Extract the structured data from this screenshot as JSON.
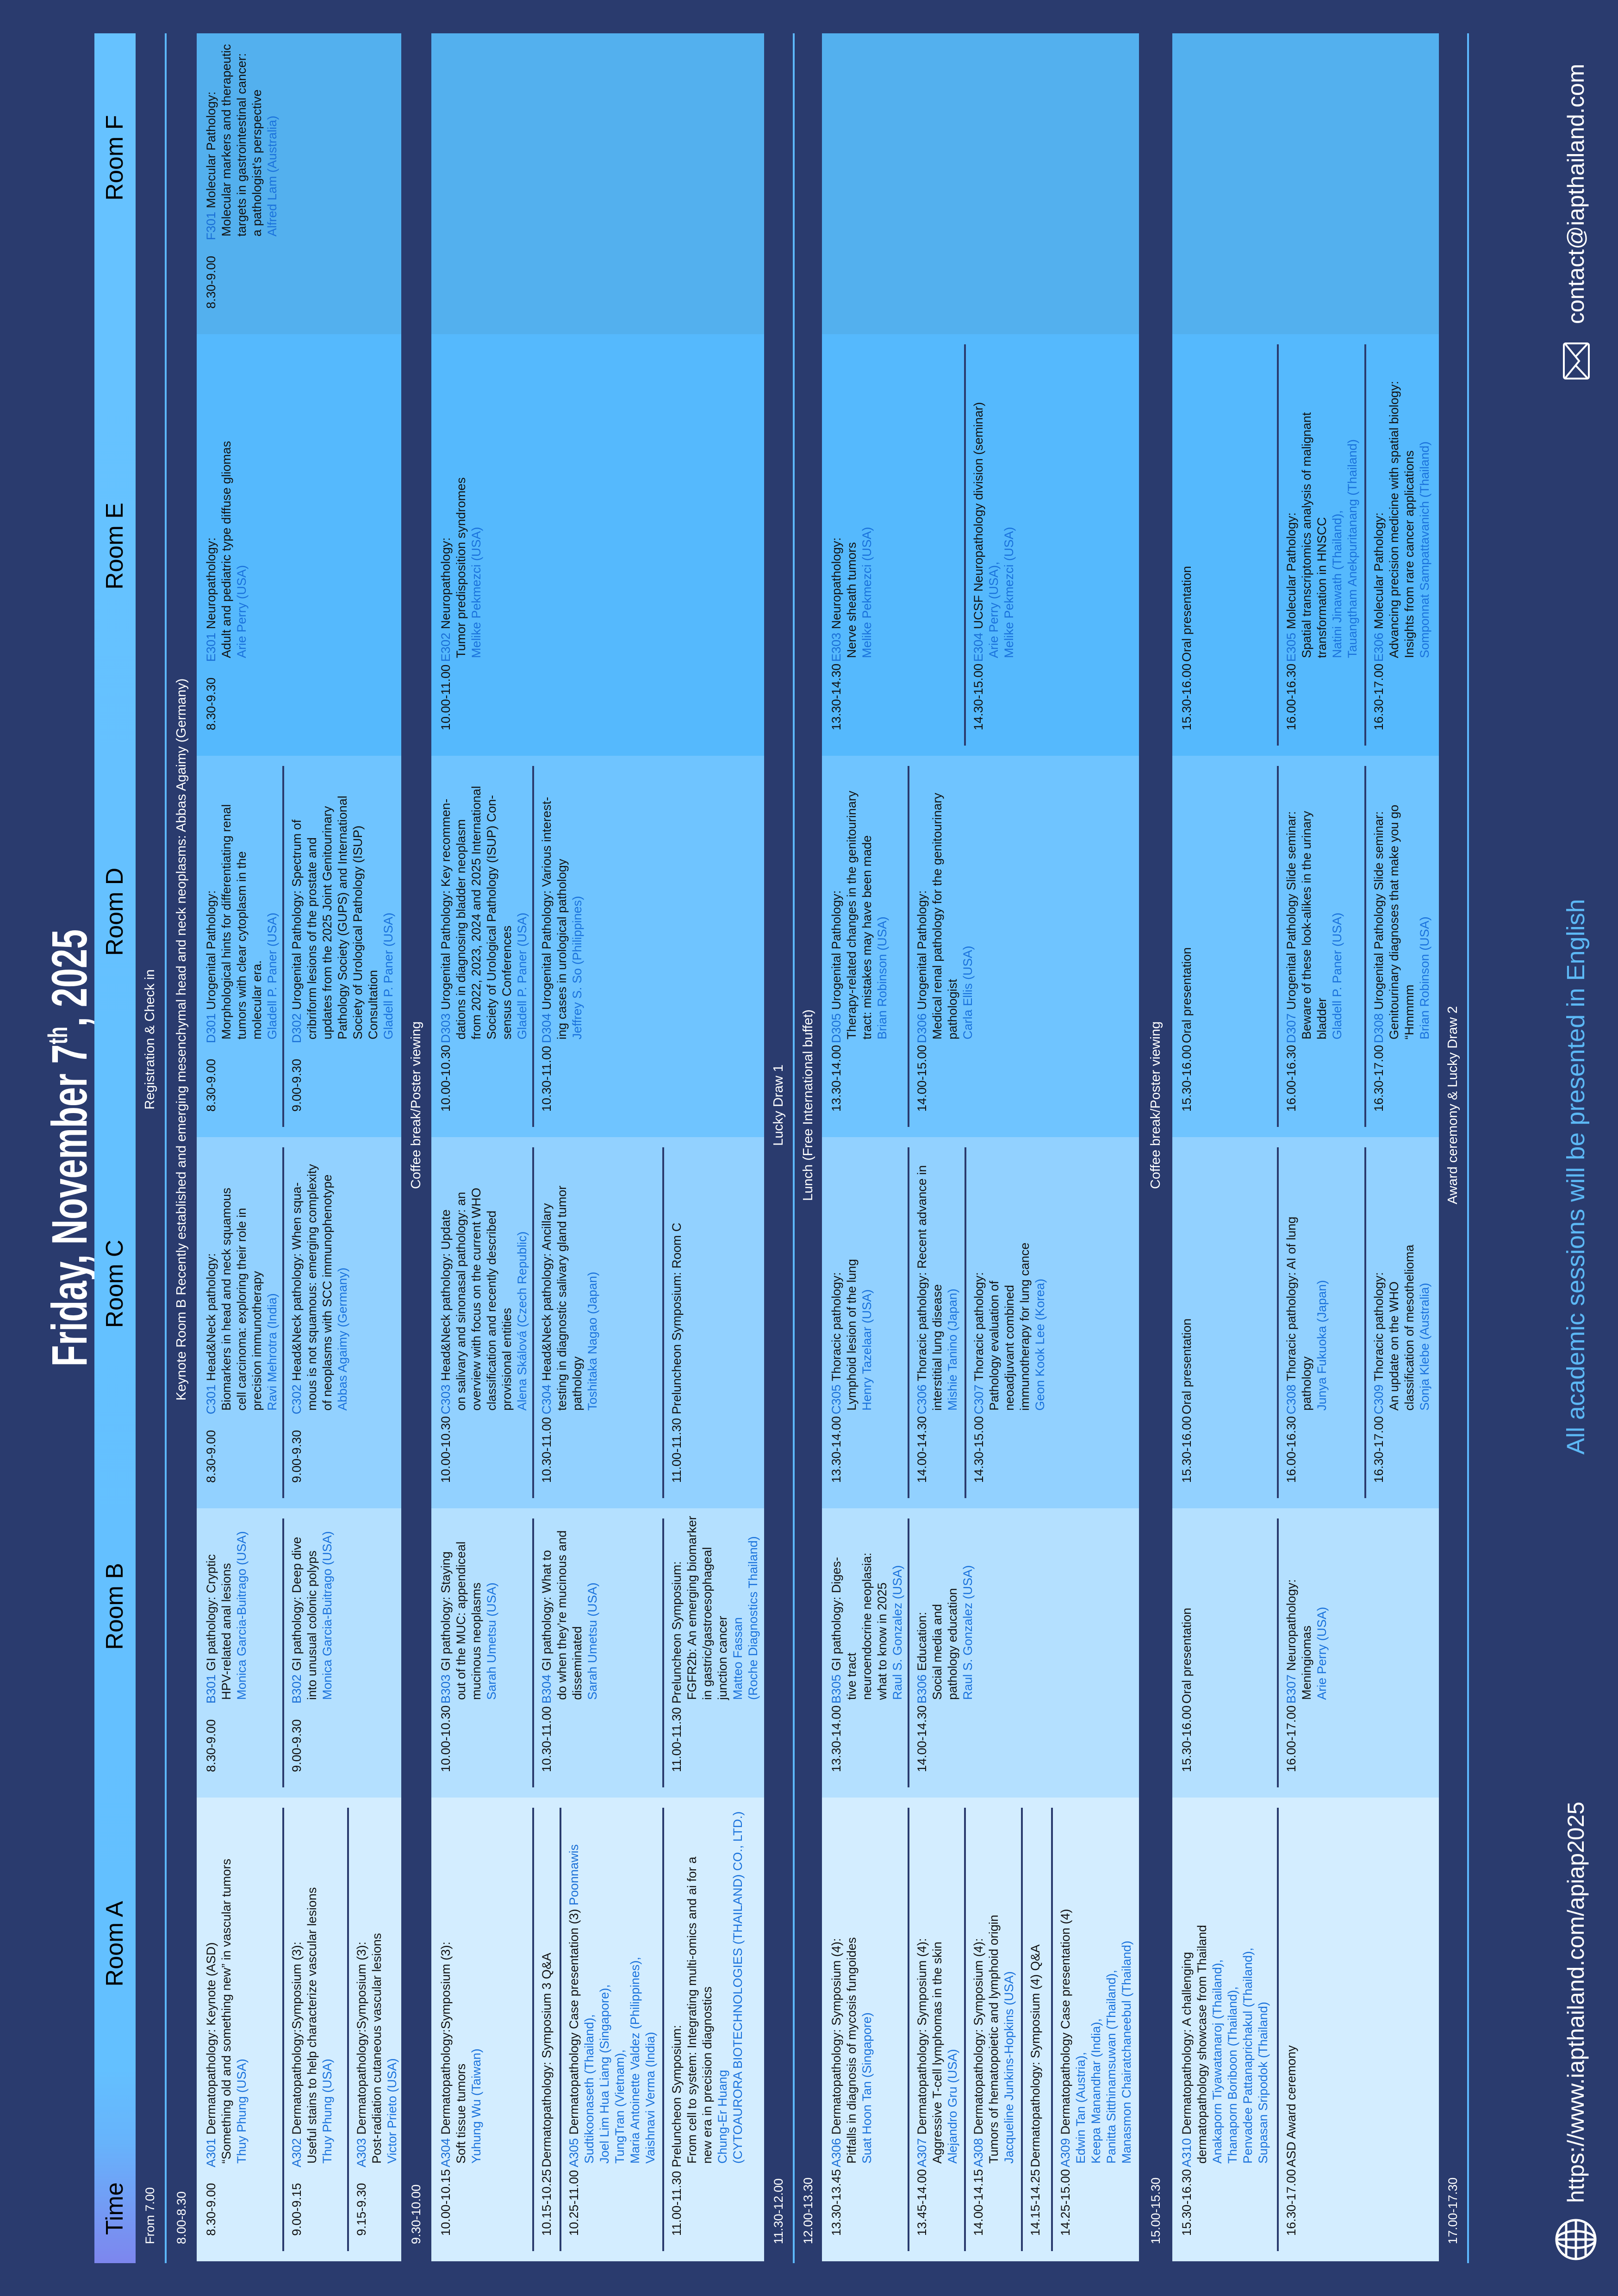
{
  "title": {
    "main": "Friday, November 7",
    "sup": "th",
    "year": ", 2025"
  },
  "header": {
    "time": "Time",
    "rooms": [
      "Room A",
      "Room B",
      "Room C",
      "Room D",
      "Room E",
      "Room F"
    ]
  },
  "colors": {
    "background": "#2a3b6e",
    "cells": [
      "#d3edff",
      "#b4e0ff",
      "#92d1ff",
      "#6fc4ff",
      "#55b9fd",
      "#53b0ee"
    ],
    "code": "#1a6fd6",
    "speaker": "#1a72dc",
    "accent_line": "#5cb8ff",
    "note": "#5cb8f5"
  },
  "bands": [
    {
      "time": "From 7.00",
      "label": "Registration & Check in"
    },
    {
      "time": "8.00-8.30",
      "label": "Keynote Room B Recently established and emerging mesenchymal head and neck neoplasms: Abbas Agaimy (Germany)"
    },
    {
      "time": "9.30-10.00",
      "label": "Coffee break/Poster viewing"
    },
    {
      "time": "11.30-12.00",
      "label": "Lucky Draw 1"
    },
    {
      "time": "12.00-13.30",
      "label": "Lunch (Free International buffet)"
    },
    {
      "time": "15.00-15.30",
      "label": "Coffee break/Poster viewing"
    },
    {
      "time": "17.00-17.30",
      "label": "Award ceremony & Lucky Draw 2"
    }
  ],
  "blocks": [
    {
      "cells": [
        [
          {
            "time": "8.30-9.00",
            "code": "A301",
            "lines": [
              "Dermatopathology: Keynote (ASD)",
              "“Something old and something new” in vascular tumors"
            ],
            "speakers": [
              "Thuy Phung (USA)"
            ]
          },
          {
            "time": "9.00-9.15",
            "code": "A302",
            "lines": [
              "Dermatopathology:Symposium (3):",
              "Useful stains to help characterize vascular lesions"
            ],
            "speakers": [
              "Thuy Phung (USA)"
            ]
          },
          {
            "time": "9.15-9.30",
            "code": "A303",
            "lines": [
              "Dermatopathology:Symposium (3):",
              "Post-radiation cutaneous vascular lesions"
            ],
            "speakers": [
              "Victor Prieto (USA)"
            ]
          }
        ],
        [
          {
            "time": "8.30-9.00",
            "code": "B301",
            "lines": [
              "GI pathology: Cryptic",
              "HPV-related anal lesions"
            ],
            "speakers": [
              "Monica Garcia-Buitrago (USA)"
            ]
          },
          {
            "time": "9.00-9.30",
            "code": "B302",
            "lines": [
              "GI pathology: Deep dive",
              "into unusual colonic polyps"
            ],
            "speakers": [
              "Monica Garcia-Buitrago (USA)"
            ]
          }
        ],
        [
          {
            "time": "8.30-9.00",
            "code": "C301",
            "lines": [
              "Head&Neck pathology:",
              "Biomarkers in head and neck squamous",
              "cell carcinoma: exploring their role in",
              "precision immunotherapy"
            ],
            "speakers": [
              "Ravi Mehrotra (India)"
            ]
          },
          {
            "time": "9.00-9.30",
            "code": "C302",
            "lines": [
              "Head&Neck pathology: When squa-",
              "mous is not squamous: emerging complexity",
              "of neoplasms with SCC immunophenotype"
            ],
            "speakers": [
              "Abbas Agaimy (Germany)"
            ]
          }
        ],
        [
          {
            "time": "8.30-9.00",
            "code": "D301",
            "lines": [
              "Urogenital Pathology:",
              "Morphological hints for differentiating renal",
              "tumors with clear cytoplasm in the",
              "molecular era."
            ],
            "speakers": [
              "Gladell P. Paner (USA)"
            ]
          },
          {
            "time": "9.00-9.30",
            "code": "D302",
            "lines": [
              "Urogenital Pathology: Spectrum of",
              "cribriform lesions of the prostate and",
              "updates from the 2025 Joint Genitourinary",
              "Pathology Society (GUPS) and International",
              "Society of Urological Pathology (ISUP)",
              "Consultation"
            ],
            "speakers": [
              "Gladell P. Paner (USA)"
            ]
          }
        ],
        [
          {
            "time": "8.30-9.30",
            "code": "E301",
            "lines": [
              "Neuropathology:",
              "Adult and pediatric type diffuse gliomas"
            ],
            "speakers": [
              "Arie Perry (USA)"
            ]
          }
        ],
        [
          {
            "time": "8.30-9.00",
            "code": "F301",
            "lines": [
              "Molecular Pathology:",
              "Molecular markers and therapeutic",
              "targets in gastrointestinal cancer:",
              "a pathologist’s perspective"
            ],
            "speakers": [
              "Alfred Lam (Australia)"
            ]
          }
        ]
      ]
    },
    {
      "cells": [
        [
          {
            "time": "10.00-10.15",
            "code": "A304",
            "lines": [
              "Dermatopathology:Symposium (3):",
              "Soft tissue tumors"
            ],
            "speakers": [
              "Yuhung Wu (Taiwan)"
            ]
          },
          {
            "time": "10.15-10.25",
            "code": "",
            "lines": [
              "Dermatopathology: Symposium 3 Q&A"
            ],
            "speakers": []
          },
          {
            "time": "10.25-11.00",
            "code": "A305",
            "lines": [
              "Dermatopathology Case presentation (3)"
            ],
            "speaker_inline": "Poonnawis",
            "speakers": [
              "Sudtikoonaseth (Thailand),",
              "Joel Lim Hua Liang (Singapore),",
              "TungTran (Vietnam),",
              "Maria Antoinette Valdez (Philippines),",
              "Vaishnavi Verma (India)"
            ]
          },
          {
            "time": "11.00-11.30",
            "code": "",
            "lines": [
              "Preluncheon Symposium:",
              "From cell to system: Integrating multi-omics and ai for a",
              "new era in precision diagnostics"
            ],
            "speakers": [
              "Chung-Er Huang",
              "(CYTOAURORA BIOTECHNOLOGIES (THAILAND) CO., LTD.)"
            ]
          }
        ],
        [
          {
            "time": "10.00-10.30",
            "code": "B303",
            "lines": [
              "GI pathology: Staying",
              "out of the MUC: appendiceal",
              "mucinous neoplasms"
            ],
            "speakers": [
              "Sarah Umetsu (USA)"
            ]
          },
          {
            "time": "10.30-11.00",
            "code": "B304",
            "lines": [
              "GI pathology: What to",
              "do when they’re mucinous and",
              "disseminated"
            ],
            "speakers": [
              "Sarah Umetsu (USA)"
            ]
          },
          {
            "time": "11.00-11.30",
            "code": "",
            "lines": [
              "Preluncheon Symposium:",
              "FGFR2b: An emerging biomarker",
              "in gastric/gastroesophageal",
              "junction cancer"
            ],
            "speakers": [
              "Matteo Fassan",
              "(Roche Diagnostics Thailand)"
            ]
          }
        ],
        [
          {
            "time": "10.00-10.30",
            "code": "C303",
            "lines": [
              "Head&Neck pathology: Update",
              "on salivary and sinonasal pathology: an",
              "overview with focus on the current WHO",
              "classification and recently described",
              "provisional entities"
            ],
            "speakers": [
              "Alena Skálová (Czech Republic)"
            ]
          },
          {
            "time": "10.30-11.00",
            "code": "C304",
            "lines": [
              "Head&Neck pathology: Ancillary",
              "testing in diagnostic salivary gland tumor",
              "pathology"
            ],
            "speakers": [
              "Toshitaka Nagao (Japan)"
            ]
          },
          {
            "time": "11.00-11.30",
            "code": "",
            "lines": [
              "Preluncheon Symposium: Room C"
            ],
            "speakers": []
          }
        ],
        [
          {
            "time": "10.00-10.30",
            "code": "D303",
            "lines": [
              "Urogenital Pathology: Key recommen-",
              "dations in diagnosing bladder neoplasm",
              "from 2022, 2023, 2024 and 2025 International",
              "Society of Urological Pathology (ISUP) Con-",
              "sensus Conferences"
            ],
            "speakers": [
              "Gladell P. Paner (USA)"
            ]
          },
          {
            "time": "10.30-11.00",
            "code": "D304",
            "lines": [
              "Urogenital Pathology: Various interest-",
              "ing cases in urological pathology"
            ],
            "speakers": [
              "Jeffrey S. So (Philippines)"
            ]
          }
        ],
        [
          {
            "time": "10.00-11.00",
            "code": "E302",
            "lines": [
              "Neuropathology:",
              "Tumor predisposition syndromes"
            ],
            "speakers": [
              "Melike Pekmezci (USA)"
            ]
          }
        ],
        []
      ]
    },
    {
      "cells": [
        [
          {
            "time": "13.30-13.45",
            "code": "A306",
            "lines": [
              "Dermatopathology: Symposium (4):",
              "Pitfalls in diagnosis of mycosis fungoides"
            ],
            "speakers": [
              "Suat Hoon Tan (Singapore)"
            ]
          },
          {
            "time": "13.45-14.00",
            "code": "A307",
            "lines": [
              "Dermatopathology: Symposium (4):",
              "Aggressive T-cell lymphomas in the skin"
            ],
            "speakers": [
              "Alejandro Gru (USA)"
            ]
          },
          {
            "time": "14.00-14.15",
            "code": "A308",
            "lines": [
              "Dermatopathology: Symposium (4):",
              "Tumors of hematopoietic and lymphoid origin"
            ],
            "speakers": [
              "Jacqueline Junkins-Hopkins (USA)"
            ]
          },
          {
            "time": "14.15-14.25",
            "code": "",
            "lines": [
              "Dermatopathology: Symposium (4) Q&A"
            ],
            "speakers": []
          },
          {
            "time": "14.25-15.00",
            "code": "A309",
            "lines": [
              "Dermatopathology Case presentation (4)"
            ],
            "speakers": [
              "Edwin Tan (Austria),",
              "Keepa Manandhar (India),",
              "Panitta Sitthinamsuwan (Thailand),",
              "Manasmon Chairatchaneebul (Thailand)"
            ]
          }
        ],
        [
          {
            "time": "13.30-14.00",
            "code": "B305",
            "lines": [
              "GI pathology: Diges-",
              "tive tract",
              "neuroendocrine neoplasia:",
              "what to know in 2025"
            ],
            "speakers": [
              "Raul S. Gonzalez (USA)"
            ]
          },
          {
            "time": "14.00-14.30",
            "code": "B306",
            "lines": [
              "Education:",
              "Social media and",
              "pathology education"
            ],
            "speakers": [
              "Raul S. Gonzalez (USA)"
            ]
          }
        ],
        [
          {
            "time": "13.30-14.00",
            "code": "C305",
            "lines": [
              "Thoracic pathology:",
              "Lymphoid lesion of the lung"
            ],
            "speakers": [
              "Henry Tazelaar (USA)"
            ]
          },
          {
            "time": "14.00-14.30",
            "code": "C306",
            "lines": [
              "Thoracic pathology: Recent advance in",
              "interstitial lung disease"
            ],
            "speakers": [
              "Mishie Tanino (Japan)"
            ]
          },
          {
            "time": "14.30-15.00",
            "code": "C307",
            "lines": [
              "Thoracic pathology:",
              "Pathology evaluation of",
              "neoadjuvant combined",
              "immunotherapy for lung cance"
            ],
            "speakers": [
              "Geon Kook Lee (Korea)"
            ]
          }
        ],
        [
          {
            "time": "13.30-14.00",
            "code": "D305",
            "lines": [
              "Urogenital Pathology:",
              "Therapy-related changes in the genitourinary",
              "tract: mistakes may have been made"
            ],
            "speakers": [
              "Brian Robinson (USA)"
            ]
          },
          {
            "time": "14.00-15.00",
            "code": "D306",
            "lines": [
              "Urogenital Pathology:",
              "Medical renal pathology for the genitourinary",
              "pathologist"
            ],
            "speakers": [
              "Carla Ellis (USA)"
            ]
          }
        ],
        [
          {
            "time": "13.30-14.30",
            "code": "E303",
            "lines": [
              "Neuropathology:",
              "Nerve sheath tumors"
            ],
            "speakers": [
              "Melike Pekmezci (USA)"
            ]
          },
          {
            "time": "14.30-15.00",
            "code": "E304",
            "lines": [
              "UCSF Neuropathology division (seminar)"
            ],
            "speakers": [
              "Arie Perry (USA),",
              "Melike Pekmezci (USA)"
            ]
          }
        ],
        []
      ]
    },
    {
      "cells": [
        [
          {
            "time": "15.30-16.30",
            "code": "A310",
            "lines": [
              "Dermatopathology: A challenging",
              "dermatopathology showcase from Thailand"
            ],
            "speakers": [
              "Anakaporn Tiyawatanaroj (Thailand),",
              "Thanaporn Boriboon (Thailand),",
              "Penvadee Pattanaprichakul (Thailand),",
              "Supasan Sripodok (Thailand)"
            ]
          },
          {
            "time": "16.30-17.00",
            "code": "",
            "lines": [
              "ASD Award ceremony"
            ],
            "speakers": []
          }
        ],
        [
          {
            "time": "15.30-16.00",
            "code": "",
            "lines": [
              "Oral presentation"
            ],
            "speakers": []
          },
          {
            "time": "16.00-17.00",
            "code": "B307",
            "lines": [
              "Neuropathology:",
              "Meningiomas"
            ],
            "speakers": [
              "Arie Perry (USA)"
            ]
          }
        ],
        [
          {
            "time": "15.30-16.00",
            "code": "",
            "lines": [
              "Oral presentation"
            ],
            "speakers": []
          },
          {
            "time": "16.00-16.30",
            "code": "C308",
            "lines": [
              "Thoracic pathology: AI of lung",
              "pathology"
            ],
            "speakers": [
              "Junya Fukuoka (Japan)"
            ]
          },
          {
            "time": "16.30-17.00",
            "code": "C309",
            "lines": [
              "Thoracic pathology:",
              "An update on the WHO",
              "classification of mesothelioma"
            ],
            "speakers": [
              "Sonja Klebe (Australia)"
            ]
          }
        ],
        [
          {
            "time": "15.30-16.00",
            "code": "",
            "lines": [
              "Oral presentation"
            ],
            "speakers": []
          },
          {
            "time": "16.00-16.30",
            "code": "D307",
            "lines": [
              "Urogenital Pathology Slide seminar:",
              "Beware of these look-alikes in the urinary",
              "bladder"
            ],
            "speakers": [
              "Gladell P. Paner (USA)"
            ]
          },
          {
            "time": "16.30-17.00",
            "code": "D308",
            "lines": [
              "Urogenital Pathology Slide seminar:",
              "Genitourinary diagnoses that make you go",
              "“Hmmmm"
            ],
            "speakers": [
              "Brian Robinson (USA)"
            ]
          }
        ],
        [
          {
            "time": "15.30-16.00",
            "code": "",
            "lines": [
              "Oral presentation"
            ],
            "speakers": []
          },
          {
            "time": "16.00-16.30",
            "code": "E305",
            "lines": [
              "Molecular Pathology:",
              "Spatial transcriptomics analysis of malignant",
              "transformation in HNSCC"
            ],
            "speakers": [
              "Natini Jinawath (Thailand),",
              "Tauangtham Anekpuritanang (Thailand)"
            ]
          },
          {
            "time": "16.30-17.00",
            "code": "E306",
            "lines": [
              "Molecular Pathology:",
              "Advancing precision medicine with spatial biology:",
              "Insights from rare cancer applications"
            ],
            "speakers": [
              "Somponnat Sampattavanich (Thailand)"
            ]
          }
        ],
        []
      ]
    }
  ],
  "footer": {
    "website": "https://www.iapthailand.com/apiap2025",
    "website_icon": "globe-icon",
    "note": "All academic sessions will be presented in English",
    "email": "contact@iapthailand.com",
    "email_icon": "envelope-icon"
  }
}
